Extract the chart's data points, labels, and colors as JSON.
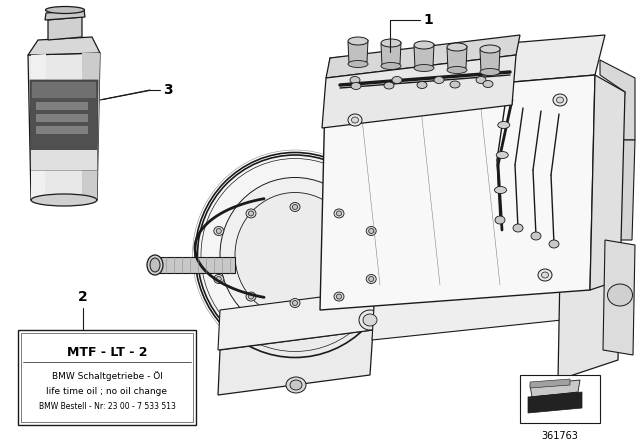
{
  "bg_color": "#ffffff",
  "fig_width": 6.4,
  "fig_height": 4.48,
  "dpi": 100,
  "label1": "1",
  "label2": "2",
  "label3": "3",
  "box2_title": "MTF - LT - 2",
  "box2_line1": "BMW Schaltgetriebe - Öl",
  "box2_line2": "life time oil ; no oil change",
  "box2_line3": "BMW Bestell - Nr: 23 00 - 7 533 513",
  "ref_number": "361763",
  "text_color": "#000000",
  "line_color": "#1a1a1a",
  "light_gray": "#e0e0e0",
  "mid_gray": "#b0b0b0",
  "dark_gray": "#666666",
  "bottle_body": "#d8d8d8",
  "bottle_label": "#555555"
}
